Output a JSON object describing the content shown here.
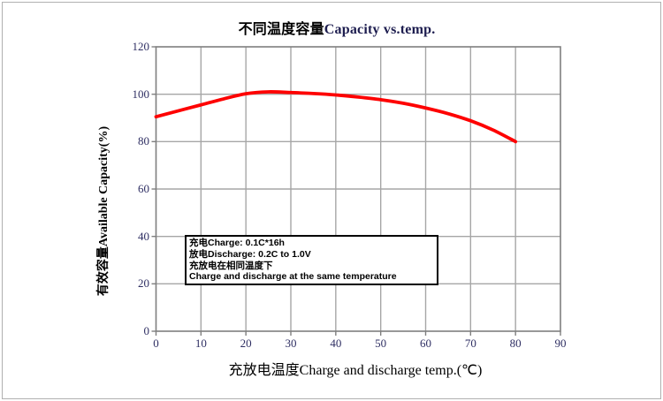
{
  "chart_data": {
    "type": "line",
    "title": {
      "zh": "不同温度容量",
      "en": "Capacity vs.temp."
    },
    "xlabel": "充放电温度Charge and discharge temp.(℃)",
    "ylabel": "有效容量Available Capacity(%)",
    "xlim": [
      0,
      90
    ],
    "ylim": [
      0,
      120
    ],
    "x_ticks": [
      0,
      10,
      20,
      30,
      40,
      50,
      60,
      70,
      80,
      90
    ],
    "y_ticks": [
      0,
      20,
      40,
      60,
      80,
      100,
      120
    ],
    "grid": true,
    "legend": "none",
    "series": [
      {
        "name": "available-capacity-curve",
        "color": "#fe0000",
        "points": [
          [
            0,
            90.5
          ],
          [
            5,
            93
          ],
          [
            10,
            95.5
          ],
          [
            15,
            98
          ],
          [
            20,
            100.2
          ],
          [
            25,
            101
          ],
          [
            30,
            100.7
          ],
          [
            35,
            100.3
          ],
          [
            40,
            99.7
          ],
          [
            45,
            98.8
          ],
          [
            50,
            97.7
          ],
          [
            55,
            96.2
          ],
          [
            60,
            94.2
          ],
          [
            65,
            91.8
          ],
          [
            70,
            88.8
          ],
          [
            75,
            84.9
          ],
          [
            80,
            80
          ]
        ]
      }
    ],
    "annotation": {
      "lines": [
        "充电Charge: 0.1C*16h",
        "放电Discharge: 0.2C to 1.0V",
        "充放电在相同温度下",
        "Charge and discharge at the same temperature"
      ]
    }
  },
  "colors": {
    "curve": "#fe0000",
    "grid": "#a6a6a6",
    "axis_border": "#7f7f7f",
    "tick_text": "#2f2f63",
    "title_en": "#1d1d4f",
    "frame": "#b0b0b0",
    "plot_background": "#ffffff",
    "annotation_border": "#000000",
    "text": "#000000"
  }
}
